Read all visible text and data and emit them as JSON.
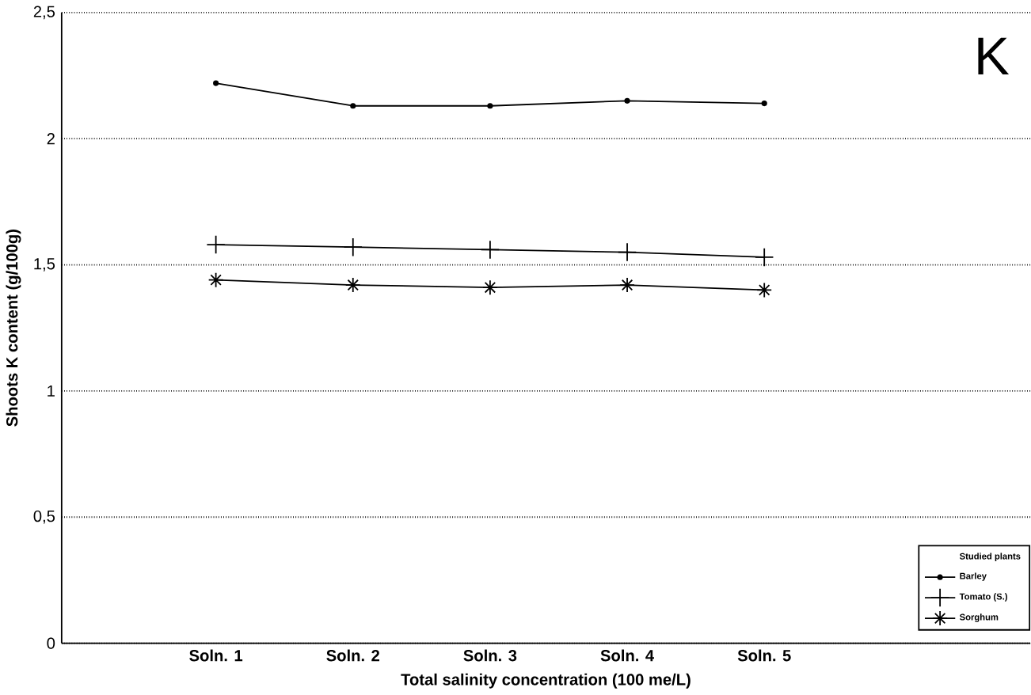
{
  "chart_data": {
    "type": "line",
    "xlabel": "Total salinity concentration (100 me/L)",
    "ylabel": "Shoots K content (g/100g)",
    "categories": [
      "Soln. 1",
      "Soln. 2",
      "Soln. 3",
      "Soln. 4",
      "Soln. 5"
    ],
    "series": [
      {
        "name": "Barley",
        "color": "#000000",
        "marker": "circle",
        "values": [
          2.22,
          2.13,
          2.13,
          2.15,
          2.14
        ]
      },
      {
        "name": "Tomato (S.)",
        "color": "#000000",
        "marker": "cross",
        "values": [
          1.58,
          1.57,
          1.56,
          1.55,
          1.53
        ]
      },
      {
        "name": "Sorghum",
        "color": "#000000",
        "marker": "cross",
        "values": [
          1.44,
          1.42,
          1.41,
          1.42,
          1.4
        ]
      }
    ],
    "ylim": [
      0,
      2.5
    ],
    "yticks": [
      0,
      {
        "value": 0.5,
        "label": "0,5"
      },
      1,
      {
        "value": 1.5,
        "label": "1,5"
      },
      2,
      {
        "value": 2.5,
        "label": "2,5"
      }
    ],
    "grid": "y",
    "legend": "bottom right",
    "legend_title": "Studied plants",
    "line_style": "solid",
    "annotations": [
      "K"
    ]
  }
}
